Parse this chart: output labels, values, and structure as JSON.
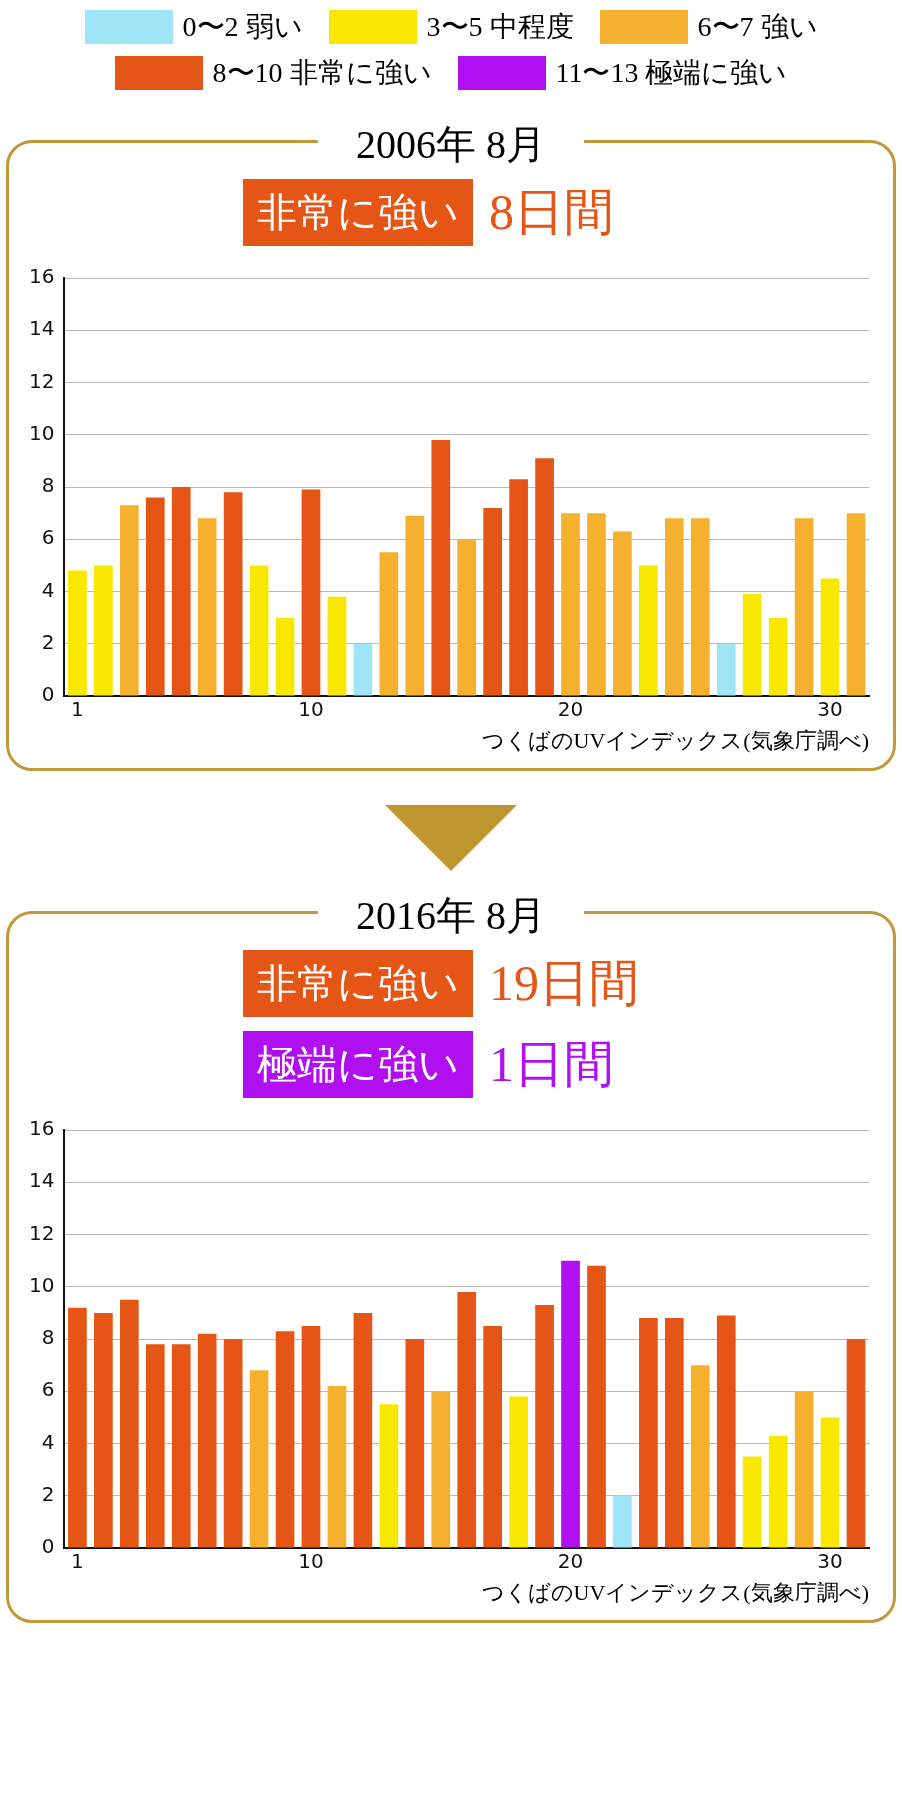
{
  "chart_data": [
    {
      "type": "bar",
      "title": "2006年 8月",
      "categories": [
        "1",
        null,
        null,
        null,
        null,
        null,
        null,
        null,
        null,
        "10",
        null,
        null,
        null,
        null,
        null,
        null,
        null,
        null,
        null,
        "20",
        null,
        null,
        null,
        null,
        null,
        null,
        null,
        null,
        null,
        "30",
        null
      ],
      "series": [
        {
          "name": "0〜2 弱い",
          "color": "#a0e4f8",
          "values": [
            null,
            null,
            null,
            null,
            null,
            null,
            null,
            null,
            null,
            null,
            null,
            2.0,
            null,
            null,
            null,
            null,
            null,
            null,
            null,
            null,
            null,
            null,
            null,
            null,
            null,
            2.0,
            null,
            null,
            null,
            null,
            null
          ]
        },
        {
          "name": "3〜5 中程度",
          "color": "#f8e800",
          "values": [
            4.8,
            5.0,
            null,
            null,
            null,
            null,
            null,
            5.0,
            3.0,
            null,
            3.8,
            null,
            null,
            null,
            null,
            null,
            null,
            null,
            null,
            null,
            null,
            null,
            5.0,
            null,
            null,
            null,
            3.9,
            3.0,
            null,
            4.5,
            null
          ]
        },
        {
          "name": "6〜7 強い",
          "color": "#f5b02e",
          "values": [
            null,
            null,
            7.3,
            null,
            null,
            6.8,
            null,
            null,
            null,
            null,
            null,
            null,
            5.5,
            6.9,
            null,
            6.0,
            null,
            null,
            null,
            7.0,
            7.0,
            6.3,
            null,
            6.8,
            6.8,
            null,
            null,
            null,
            6.8,
            null,
            7.0
          ]
        },
        {
          "name": "8〜10 非常に強い",
          "color": "#e55515",
          "values": [
            null,
            null,
            null,
            7.6,
            8.0,
            null,
            7.8,
            null,
            null,
            7.9,
            null,
            null,
            null,
            null,
            9.8,
            null,
            7.2,
            8.3,
            9.1,
            null,
            null,
            null,
            null,
            null,
            null,
            null,
            null,
            null,
            null,
            null,
            null
          ]
        },
        {
          "name": "11〜13 極端に強い",
          "color": "#b010f0",
          "values": [
            null,
            null,
            null,
            null,
            null,
            null,
            null,
            null,
            null,
            null,
            null,
            null,
            null,
            null,
            null,
            null,
            null,
            null,
            null,
            null,
            null,
            null,
            null,
            null,
            null,
            null,
            null,
            null,
            null,
            null,
            null
          ]
        }
      ],
      "ylim": [
        0,
        16
      ],
      "yticks": [
        0,
        2,
        4,
        6,
        8,
        10,
        12,
        14,
        16
      ],
      "grid": "y",
      "legend": "top",
      "annotations": [
        "非常に強い",
        "8日間",
        "つくばのUVインデックス(気象庁調べ)"
      ]
    },
    {
      "type": "bar",
      "title": "2016年 8月",
      "categories": [
        "1",
        null,
        null,
        null,
        null,
        null,
        null,
        null,
        null,
        "10",
        null,
        null,
        null,
        null,
        null,
        null,
        null,
        null,
        null,
        "20",
        null,
        null,
        null,
        null,
        null,
        null,
        null,
        null,
        null,
        "30",
        null
      ],
      "series": [
        {
          "color": "#a0e4f8",
          "values": [
            null,
            null,
            null,
            null,
            null,
            null,
            null,
            null,
            null,
            null,
            null,
            null,
            null,
            null,
            null,
            null,
            null,
            null,
            null,
            null,
            null,
            2.0,
            null,
            null,
            null,
            null,
            null,
            null,
            null,
            null,
            null
          ]
        },
        {
          "color": "#f8e800",
          "values": [
            null,
            null,
            null,
            null,
            null,
            null,
            null,
            null,
            null,
            null,
            null,
            null,
            5.5,
            null,
            null,
            null,
            null,
            5.8,
            null,
            null,
            null,
            null,
            null,
            null,
            null,
            null,
            3.5,
            4.3,
            null,
            5.0,
            null
          ]
        },
        {
          "color": "#f5b02e",
          "values": [
            null,
            null,
            null,
            null,
            null,
            null,
            null,
            6.8,
            null,
            null,
            6.2,
            null,
            null,
            null,
            6.0,
            null,
            null,
            null,
            null,
            null,
            null,
            null,
            null,
            null,
            7.0,
            null,
            null,
            null,
            6.0,
            null,
            null
          ]
        },
        {
          "color": "#e55515",
          "values": [
            9.2,
            9.0,
            9.5,
            7.8,
            7.8,
            8.2,
            8.0,
            null,
            8.3,
            8.5,
            null,
            9.0,
            null,
            8.0,
            null,
            9.8,
            8.5,
            null,
            9.3,
            null,
            10.8,
            null,
            8.8,
            8.8,
            null,
            8.9,
            null,
            null,
            null,
            null,
            8.0
          ]
        },
        {
          "color": "#b010f0",
          "values": [
            null,
            null,
            null,
            null,
            null,
            null,
            null,
            null,
            null,
            null,
            null,
            null,
            null,
            null,
            null,
            null,
            null,
            null,
            null,
            11.0,
            null,
            null,
            null,
            null,
            null,
            null,
            null,
            null,
            null,
            null,
            null
          ]
        }
      ],
      "ylim": [
        0,
        16
      ],
      "yticks": [
        0,
        2,
        4,
        6,
        8,
        10,
        12,
        14,
        16
      ],
      "grid": "y",
      "annotations": [
        "非常に強い",
        "19日間",
        "極端に強い",
        "1日間",
        "つくばのUVインデックス(気象庁調べ)"
      ]
    }
  ]
}
